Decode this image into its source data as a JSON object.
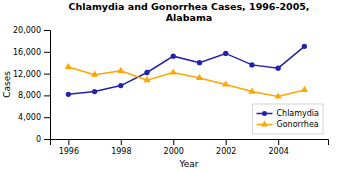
{
  "chart_data": {
    "type": "line",
    "title": "Chlamydia and Gonorrhea Cases, 1996-2005,\nAlabama",
    "x": [
      1996,
      1997,
      1998,
      1999,
      2000,
      2001,
      2002,
      2003,
      2004,
      2005
    ],
    "series": [
      {
        "name": "Chlamydia",
        "color": "#2222aa",
        "marker": "circle",
        "line_style": "solid",
        "values": [
          8200,
          8700,
          9800,
          12200,
          15200,
          14000,
          15700,
          13600,
          13000,
          17000
        ]
      },
      {
        "name": "Gonorrhea",
        "color": "#ffa500",
        "marker": "triangle",
        "line_style": "solid",
        "values": [
          13200,
          11800,
          12500,
          10800,
          12200,
          11200,
          10000,
          8700,
          7800,
          9000
        ]
      }
    ],
    "xlim": [
      1995.3,
      2005.9
    ],
    "xticks": [
      1996,
      1998,
      2000,
      2002,
      2004
    ],
    "ylim": [
      0,
      20000
    ],
    "yticks": [
      0,
      {
        "value": 4000,
        "label": "4,000"
      },
      {
        "value": 8000,
        "label": "8,000"
      },
      {
        "value": 12000,
        "label": "12,000"
      },
      {
        "value": 16000,
        "label": "16,000"
      },
      {
        "value": 20000,
        "label": "20,000"
      }
    ],
    "xlabel": "Year",
    "ylabel": "Cases",
    "grid": false,
    "legend": "lower-right"
  }
}
